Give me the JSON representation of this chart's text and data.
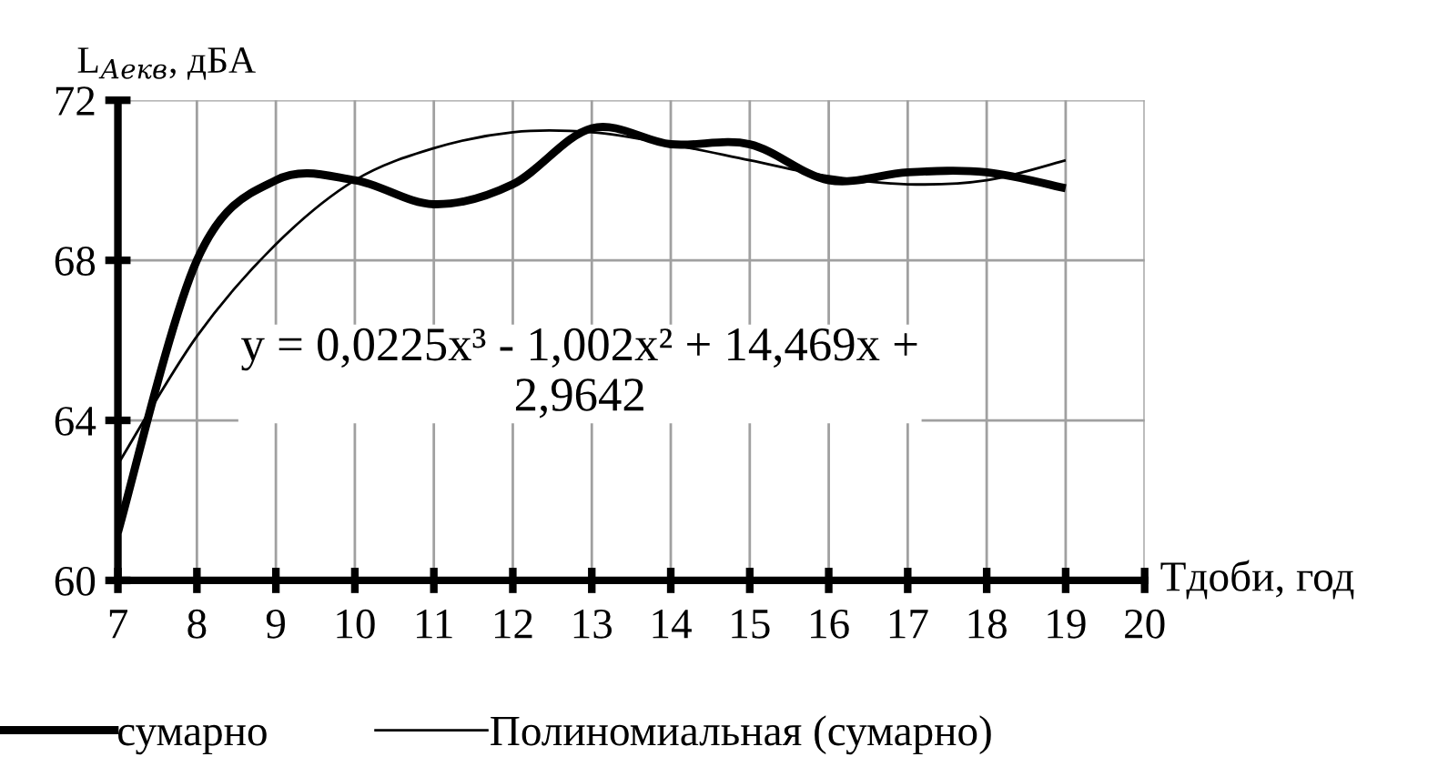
{
  "chart_data": {
    "type": "line",
    "ylabel": "L$_{Аекв}$, дБА",
    "xlabel": "Тдоби, год",
    "x": [
      7,
      8,
      9,
      10,
      11,
      12,
      13,
      14,
      15,
      16,
      17,
      18,
      19
    ],
    "series": [
      {
        "name": "сумарно",
        "color": "#000000",
        "values": [
          61.2,
          68.0,
          70.0,
          70.0,
          69.4,
          69.9,
          71.3,
          70.9,
          70.9,
          70.0,
          70.2,
          70.2,
          69.8
        ]
      },
      {
        "name": "Полиномиальная (сумарно)",
        "color": "#000000",
        "type": "line",
        "x": [
          7,
          8,
          9,
          10,
          11,
          12,
          13,
          14,
          15,
          16,
          17,
          18,
          19
        ],
        "values": [
          62.9,
          66.1,
          68.4,
          70.0,
          70.8,
          71.2,
          71.2,
          70.9,
          70.5,
          70.1,
          69.9,
          70.0,
          70.5
        ]
      }
    ],
    "annotations": [
      "y = 0,0225x³ - 1,002x² + 14,469x +\n2,9642"
    ],
    "xlim": [
      7,
      20
    ],
    "xticks": [
      7,
      8,
      9,
      10,
      11,
      12,
      13,
      14,
      15,
      16,
      17,
      18,
      19,
      20
    ],
    "ylim": [
      60,
      72
    ],
    "yticks": [
      60,
      64,
      68,
      72
    ],
    "grid": true,
    "legend": "bottom",
    "marker": "none",
    "line_style": "solid"
  }
}
